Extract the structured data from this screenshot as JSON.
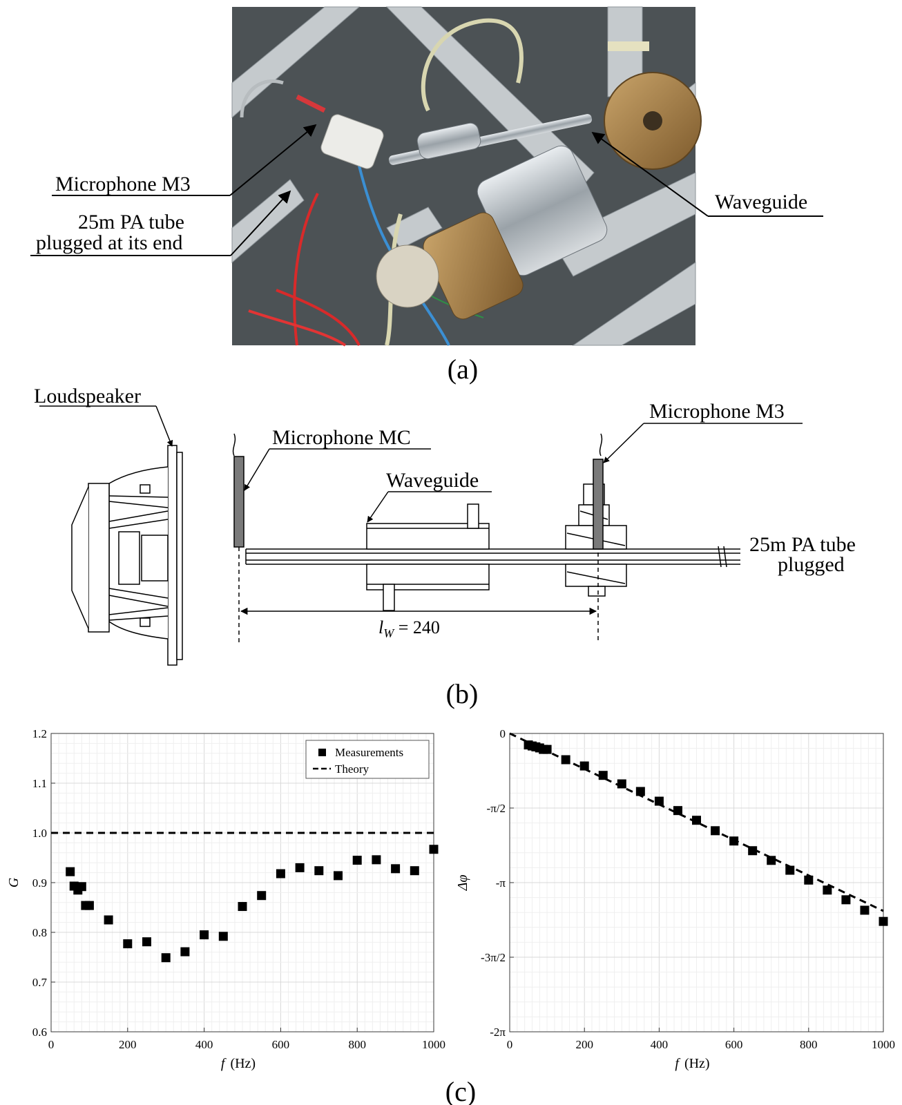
{
  "panel_a": {
    "caption": "(a)",
    "callouts": {
      "mic_m3": "Microphone M3",
      "pa_tube_line1": "25m PA tube",
      "pa_tube_line2": "plugged at its end",
      "waveguide": "Waveguide"
    }
  },
  "panel_b": {
    "caption": "(b)",
    "labels": {
      "loudspeaker": "Loudspeaker",
      "mic_mc": "Microphone MC",
      "waveguide": "Waveguide",
      "mic_m3": "Microphone M3",
      "pa_tube_line1": "25m PA tube",
      "pa_tube_line2": "plugged",
      "lw": "l",
      "lw_sub": "W",
      "lw_value": " = 240"
    }
  },
  "panel_c": {
    "caption": "(c)"
  },
  "chart_data": [
    {
      "type": "scatter",
      "title": "",
      "xlabel_var": "f",
      "xlabel_unit": "(Hz)",
      "ylabel": "G",
      "xlim": [
        0,
        1000
      ],
      "ylim": [
        0.6,
        1.2
      ],
      "xticks": [
        "0",
        "200",
        "400",
        "600",
        "800",
        "1000"
      ],
      "yticks": [
        "0.6",
        "0.7",
        "0.8",
        "0.9",
        "1.0",
        "1.1",
        "1.2"
      ],
      "grid": true,
      "legend_position": "top-right",
      "legend": [
        "Measurements",
        "Theory"
      ],
      "series": [
        {
          "name": "Measurements",
          "marker": "square",
          "x": [
            50,
            60,
            70,
            80,
            90,
            100,
            150,
            200,
            250,
            300,
            350,
            400,
            450,
            500,
            550,
            600,
            650,
            700,
            750,
            800,
            850,
            900,
            950,
            1000
          ],
          "y": [
            0.922,
            0.893,
            0.885,
            0.892,
            0.854,
            0.854,
            0.825,
            0.777,
            0.781,
            0.749,
            0.761,
            0.795,
            0.792,
            0.852,
            0.874,
            0.918,
            0.93,
            0.924,
            0.914,
            0.945,
            0.946,
            0.928,
            0.924,
            0.967
          ]
        },
        {
          "name": "Theory",
          "style": "dashed",
          "x": [
            0,
            1000
          ],
          "y": [
            1.0,
            1.0
          ]
        }
      ]
    },
    {
      "type": "scatter",
      "title": "",
      "xlabel_var": "f",
      "xlabel_unit": "(Hz)",
      "ylabel": "Δφ",
      "xlim": [
        0,
        1000
      ],
      "ylim_over_pi": [
        -2,
        0
      ],
      "xticks": [
        "0",
        "200",
        "400",
        "600",
        "800",
        "1000"
      ],
      "yticks": [
        "0",
        "-π/2",
        "-π",
        "-3π/2",
        "-2π"
      ],
      "grid": true,
      "series": [
        {
          "name": "Measurements",
          "marker": "square",
          "x": [
            50,
            60,
            70,
            80,
            90,
            100,
            150,
            200,
            250,
            300,
            350,
            400,
            450,
            500,
            550,
            600,
            650,
            700,
            750,
            800,
            850,
            900,
            950,
            1000
          ],
          "y_over_pi": [
            -0.077,
            -0.084,
            -0.09,
            -0.097,
            -0.107,
            -0.107,
            -0.176,
            -0.218,
            -0.281,
            -0.338,
            -0.389,
            -0.454,
            -0.517,
            -0.582,
            -0.652,
            -0.721,
            -0.786,
            -0.851,
            -0.917,
            -0.983,
            -1.05,
            -1.115,
            -1.185,
            -1.26
          ]
        },
        {
          "name": "Theory",
          "style": "dashed",
          "x": [
            0,
            1000
          ],
          "y_over_pi": [
            0,
            -1.19
          ]
        }
      ]
    }
  ]
}
